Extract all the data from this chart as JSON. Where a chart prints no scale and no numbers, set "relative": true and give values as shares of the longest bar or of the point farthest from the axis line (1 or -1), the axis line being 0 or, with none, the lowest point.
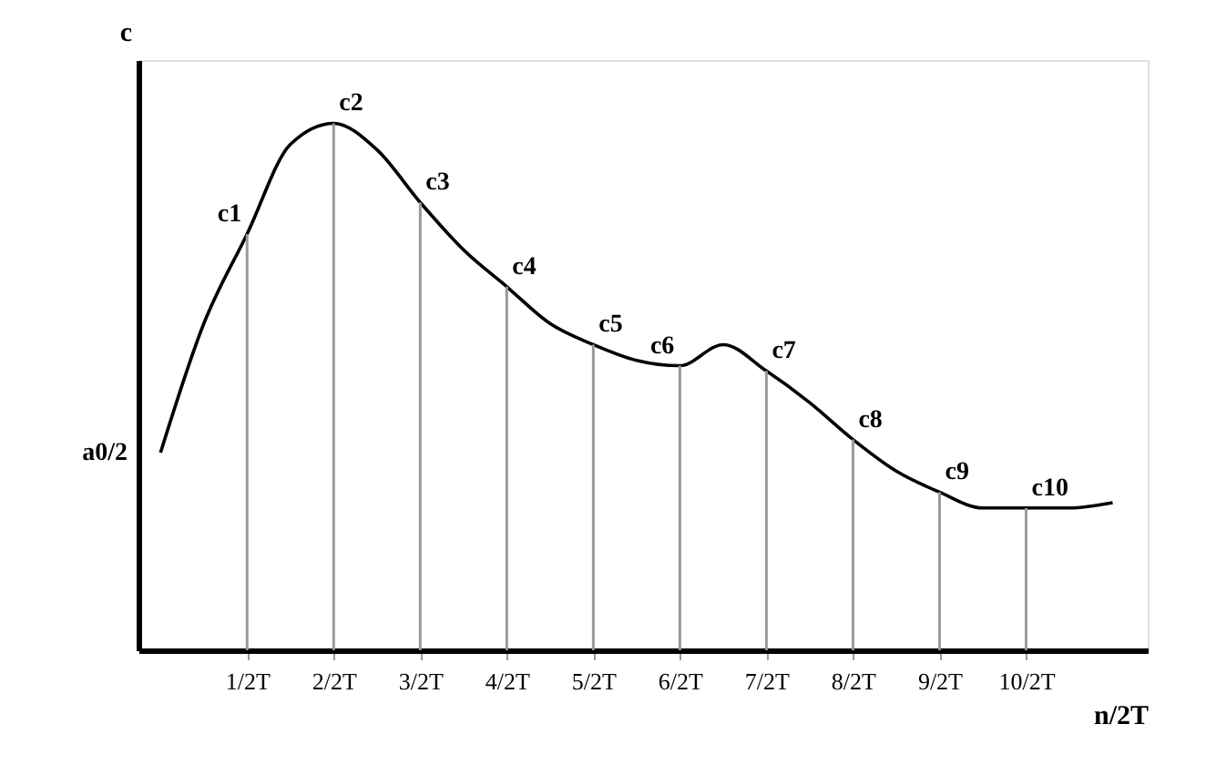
{
  "chart_data": {
    "type": "line",
    "relative": true,
    "ylabel": "c",
    "xlabel": "n/2T",
    "categories": [
      null,
      null,
      "1/2T",
      null,
      "2/2T",
      null,
      "3/2T",
      null,
      "4/2T",
      null,
      "5/2T",
      null,
      "6/2T",
      null,
      "7/2T",
      null,
      "8/2T",
      null,
      "9/2T",
      null,
      "10/2T",
      null,
      null
    ],
    "grid": false,
    "legend": false,
    "marker": "none",
    "line_style": "solid",
    "series": [
      {
        "color": "#000000",
        "values": [
          0.375,
          0.62,
          0.79,
          0.96,
          1,
          0.95,
          0.85,
          0.76,
          0.69,
          0.62,
          0.58,
          0.55,
          0.54,
          0.58,
          0.53,
          0.47,
          0.4,
          0.34,
          0.3,
          0.27,
          0.27,
          0.27,
          0.28
        ]
      },
      {
        "type": "bar",
        "color": "#999999",
        "values": [
          null,
          null,
          0.79,
          null,
          1,
          null,
          0.85,
          null,
          0.69,
          null,
          0.58,
          null,
          0.54,
          null,
          0.53,
          null,
          0.4,
          null,
          0.3,
          null,
          0.27,
          null,
          null
        ]
      }
    ],
    "annotations": [
      "a0/2",
      {
        "text": "c1",
        "x": "1/2T",
        "y": 0.79
      },
      {
        "text": "c2",
        "x": "2/2T",
        "y": 1
      },
      {
        "text": "c3",
        "x": "3/2T",
        "y": 0.85
      },
      {
        "text": "c4",
        "x": "4/2T",
        "y": 0.69
      },
      {
        "text": "c5",
        "x": "5/2T",
        "y": 0.58
      },
      {
        "text": "c6",
        "x": "6/2T",
        "y": 0.54
      },
      {
        "text": "c7",
        "x": "7/2T",
        "y": 0.53
      },
      {
        "text": "c8",
        "x": "8/2T",
        "y": 0.4
      },
      {
        "text": "c9",
        "x": "9/2T",
        "y": 0.3
      },
      {
        "text": "c10",
        "x": "10/2T",
        "y": 0.27
      }
    ]
  }
}
